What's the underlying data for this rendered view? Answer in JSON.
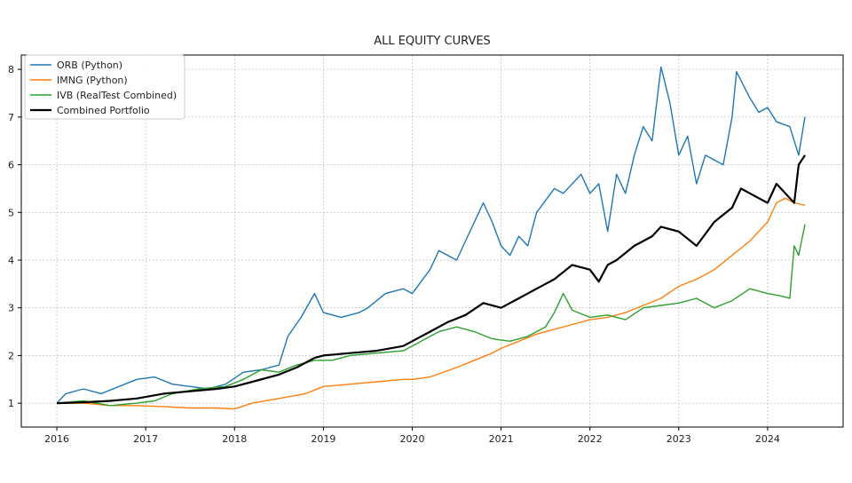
{
  "chart_data": {
    "type": "line",
    "title": "ALL EQUITY CURVES",
    "xlabel": "",
    "ylabel": "",
    "xlim": [
      2015.6,
      2024.85
    ],
    "ylim": [
      0.5,
      8.3
    ],
    "x_ticks": [
      "2016",
      "2017",
      "2018",
      "2019",
      "2020",
      "2021",
      "2022",
      "2023",
      "2024"
    ],
    "y_ticks": [
      "1",
      "2",
      "3",
      "4",
      "5",
      "6",
      "7",
      "8"
    ],
    "grid": true,
    "legend_position": "top-left",
    "series": [
      {
        "name": "ORB (Python)",
        "color": "#1f77b4",
        "x": [
          2016.0,
          2016.1,
          2016.3,
          2016.5,
          2016.7,
          2016.9,
          2017.1,
          2017.3,
          2017.5,
          2017.7,
          2017.9,
          2018.1,
          2018.3,
          2018.5,
          2018.6,
          2018.75,
          2018.9,
          2019.0,
          2019.2,
          2019.4,
          2019.5,
          2019.7,
          2019.9,
          2020.0,
          2020.2,
          2020.3,
          2020.5,
          2020.6,
          2020.8,
          2020.9,
          2021.0,
          2021.1,
          2021.2,
          2021.3,
          2021.4,
          2021.6,
          2021.7,
          2021.9,
          2022.0,
          2022.1,
          2022.2,
          2022.3,
          2022.4,
          2022.5,
          2022.6,
          2022.7,
          2022.8,
          2022.9,
          2023.0,
          2023.1,
          2023.2,
          2023.3,
          2023.5,
          2023.6,
          2023.65,
          2023.8,
          2023.9,
          2024.0,
          2024.1,
          2024.25,
          2024.35,
          2024.42
        ],
        "y": [
          1.0,
          1.2,
          1.3,
          1.2,
          1.35,
          1.5,
          1.55,
          1.4,
          1.35,
          1.3,
          1.4,
          1.65,
          1.7,
          1.8,
          2.4,
          2.8,
          3.3,
          2.9,
          2.8,
          2.9,
          3.0,
          3.3,
          3.4,
          3.3,
          3.8,
          4.2,
          4.0,
          4.4,
          5.2,
          4.8,
          4.3,
          4.1,
          4.5,
          4.3,
          5.0,
          5.5,
          5.4,
          5.8,
          5.4,
          5.6,
          4.6,
          5.8,
          5.4,
          6.2,
          6.8,
          6.5,
          8.05,
          7.3,
          6.2,
          6.6,
          5.6,
          6.2,
          6.0,
          7.0,
          7.95,
          7.4,
          7.1,
          7.2,
          6.9,
          6.8,
          6.2,
          7.0
        ]
      },
      {
        "name": "IMNG (Python)",
        "color": "#ff7f0e",
        "x": [
          2016.0,
          2016.3,
          2016.6,
          2016.9,
          2017.2,
          2017.5,
          2017.8,
          2018.0,
          2018.2,
          2018.5,
          2018.8,
          2019.0,
          2019.3,
          2019.6,
          2019.9,
          2020.0,
          2020.2,
          2020.5,
          2020.7,
          2020.9,
          2021.0,
          2021.2,
          2021.4,
          2021.6,
          2021.8,
          2022.0,
          2022.2,
          2022.4,
          2022.6,
          2022.8,
          2023.0,
          2023.2,
          2023.4,
          2023.6,
          2023.8,
          2024.0,
          2024.1,
          2024.2,
          2024.3,
          2024.42
        ],
        "y": [
          1.0,
          1.0,
          0.95,
          0.95,
          0.93,
          0.9,
          0.9,
          0.88,
          1.0,
          1.1,
          1.2,
          1.35,
          1.4,
          1.45,
          1.5,
          1.5,
          1.55,
          1.75,
          1.9,
          2.05,
          2.15,
          2.3,
          2.45,
          2.55,
          2.65,
          2.75,
          2.8,
          2.9,
          3.05,
          3.2,
          3.45,
          3.6,
          3.8,
          4.1,
          4.4,
          4.8,
          5.2,
          5.3,
          5.2,
          5.15
        ]
      },
      {
        "name": "IVB (RealTest Combined)",
        "color": "#2ca02c",
        "x": [
          2016.0,
          2016.3,
          2016.6,
          2016.9,
          2017.1,
          2017.3,
          2017.6,
          2017.9,
          2018.1,
          2018.3,
          2018.5,
          2018.7,
          2018.9,
          2019.1,
          2019.3,
          2019.6,
          2019.9,
          2020.1,
          2020.3,
          2020.5,
          2020.7,
          2020.9,
          2021.1,
          2021.3,
          2021.5,
          2021.6,
          2021.7,
          2021.8,
          2022.0,
          2022.2,
          2022.4,
          2022.6,
          2022.8,
          2023.0,
          2023.2,
          2023.4,
          2023.6,
          2023.8,
          2024.0,
          2024.15,
          2024.25,
          2024.3,
          2024.35,
          2024.42
        ],
        "y": [
          1.0,
          1.05,
          0.95,
          1.0,
          1.05,
          1.2,
          1.3,
          1.35,
          1.5,
          1.7,
          1.65,
          1.8,
          1.9,
          1.9,
          2.0,
          2.05,
          2.1,
          2.3,
          2.5,
          2.6,
          2.5,
          2.35,
          2.3,
          2.4,
          2.6,
          2.9,
          3.3,
          2.95,
          2.8,
          2.85,
          2.75,
          3.0,
          3.05,
          3.1,
          3.2,
          3.0,
          3.15,
          3.4,
          3.3,
          3.25,
          3.2,
          4.3,
          4.1,
          4.75
        ]
      },
      {
        "name": "Combined Portfolio",
        "color": "#000000",
        "x": [
          2016.0,
          2016.3,
          2016.6,
          2016.9,
          2017.2,
          2017.5,
          2017.8,
          2018.0,
          2018.2,
          2018.5,
          2018.7,
          2018.9,
          2019.0,
          2019.3,
          2019.6,
          2019.9,
          2020.0,
          2020.2,
          2020.4,
          2020.6,
          2020.8,
          2021.0,
          2021.2,
          2021.4,
          2021.6,
          2021.8,
          2022.0,
          2022.1,
          2022.2,
          2022.3,
          2022.5,
          2022.7,
          2022.8,
          2023.0,
          2023.2,
          2023.4,
          2023.6,
          2023.7,
          2023.9,
          2024.0,
          2024.1,
          2024.2,
          2024.3,
          2024.35,
          2024.42
        ],
        "y": [
          1.0,
          1.02,
          1.05,
          1.1,
          1.2,
          1.25,
          1.3,
          1.35,
          1.45,
          1.6,
          1.75,
          1.95,
          2.0,
          2.05,
          2.1,
          2.2,
          2.3,
          2.5,
          2.7,
          2.85,
          3.1,
          3.0,
          3.2,
          3.4,
          3.6,
          3.9,
          3.8,
          3.55,
          3.9,
          4.0,
          4.3,
          4.5,
          4.7,
          4.6,
          4.3,
          4.8,
          5.1,
          5.5,
          5.3,
          5.2,
          5.6,
          5.4,
          5.2,
          6.0,
          6.2
        ]
      }
    ]
  }
}
